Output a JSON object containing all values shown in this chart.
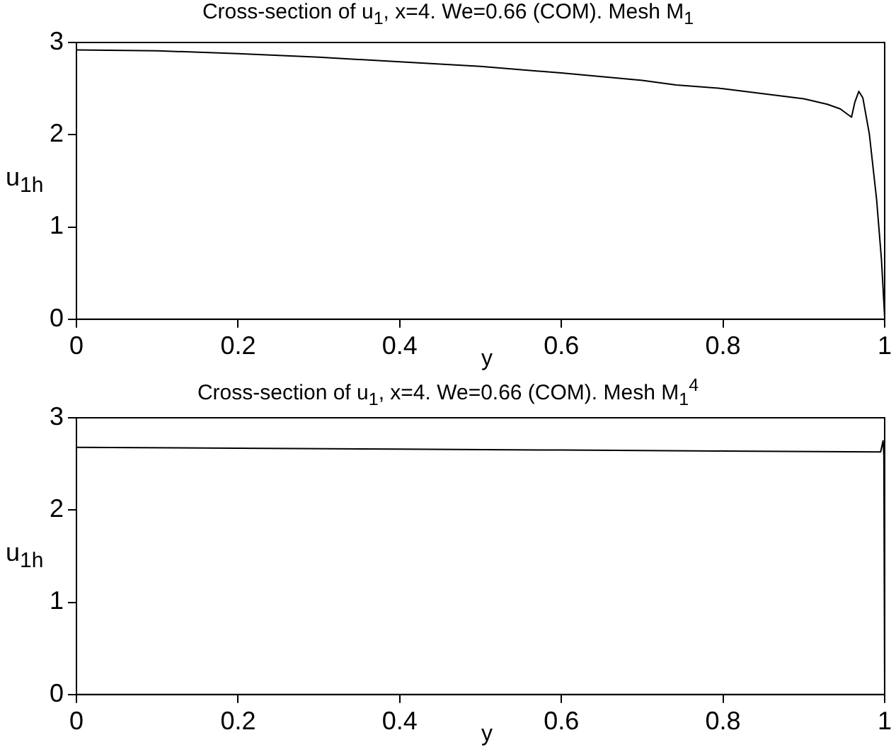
{
  "chart_data": [
    {
      "type": "line",
      "title": "Cross-section of u$_{1}$, x=4. We=0.66 (COM). Mesh M$_{1}$",
      "xlabel": "y",
      "ylabel": "u$_{1h}$",
      "x": [
        0,
        0.1,
        0.2,
        0.3,
        0.4,
        0.5,
        0.6,
        0.7,
        0.742,
        0.8,
        0.9,
        0.929,
        0.945,
        0.959,
        0.963,
        0.968,
        0.973,
        0.981,
        0.99,
        0.996,
        1
      ],
      "series": [
        {
          "color": "#000000",
          "values": [
            2.92,
            2.91,
            2.88,
            2.84,
            2.79,
            2.74,
            2.67,
            2.59,
            2.54,
            2.5,
            2.39,
            2.33,
            2.28,
            2.19,
            2.35,
            2.47,
            2.4,
            2.01,
            1.3,
            0.65,
            0.02
          ]
        }
      ],
      "xlim": [
        0,
        1
      ],
      "ylim": [
        0,
        3
      ],
      "xticks": [
        0,
        0.2,
        0.4,
        0.6,
        0.8,
        1
      ],
      "yticks": [
        0,
        1,
        2,
        3
      ],
      "grid": false,
      "legend": false
    },
    {
      "type": "line",
      "title": "Cross-section of u$_{1}$, x=4. We=0.66 (COM). Mesh M$_{1}$$^{4}$",
      "xlabel": "y",
      "ylabel": "u$_{1h}$",
      "x": [
        0,
        0.2,
        0.4,
        0.6,
        0.8,
        0.995,
        0.998,
        0.999,
        1
      ],
      "series": [
        {
          "color": "#000000",
          "values": [
            2.68,
            2.67,
            2.66,
            2.65,
            2.64,
            2.63,
            2.75,
            2.6,
            0
          ]
        }
      ],
      "xlim": [
        0,
        1
      ],
      "ylim": [
        0,
        3
      ],
      "xticks": [
        0,
        0.2,
        0.4,
        0.6,
        0.8,
        1
      ],
      "yticks": [
        0,
        1,
        2,
        3
      ],
      "grid": false,
      "legend": false
    }
  ]
}
